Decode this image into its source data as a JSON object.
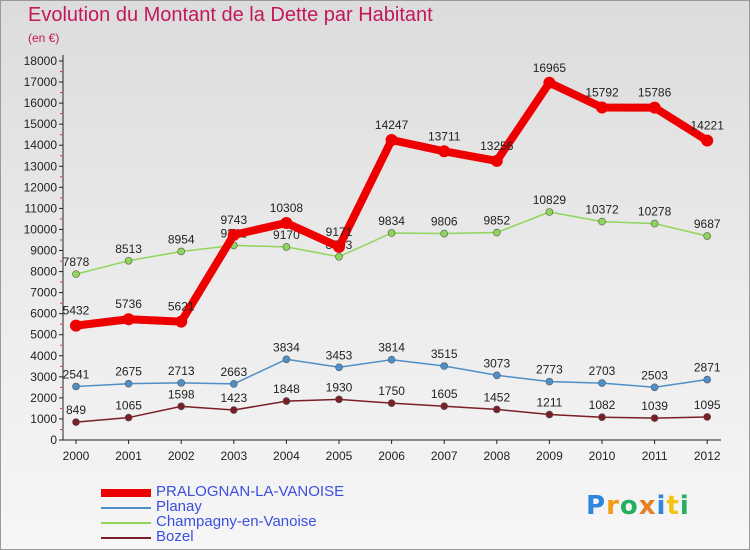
{
  "title": "Evolution du Montant de la Dette par Habitant",
  "subtitle": "(en €)",
  "logo": "Proxiti",
  "chart_data": {
    "type": "line",
    "title": "Evolution du Montant de la Dette par Habitant",
    "subtitle": "(en €)",
    "xlabel": "",
    "ylabel": "",
    "x": [
      "2000",
      "2001",
      "2002",
      "2003",
      "2004",
      "2005",
      "2006",
      "2007",
      "2008",
      "2009",
      "2010",
      "2011",
      "2012"
    ],
    "ylim": [
      0,
      18000
    ],
    "yticks": [
      0,
      1000,
      2000,
      3000,
      4000,
      5000,
      6000,
      7000,
      8000,
      9000,
      10000,
      11000,
      12000,
      13000,
      14000,
      15000,
      16000,
      17000,
      18000
    ],
    "grid": false,
    "legend_position": "bottom-left",
    "series": [
      {
        "name": "PRALOGNAN-LA-VANOISE",
        "color": "#ee0000",
        "values": [
          5432,
          5736,
          5621,
          9743,
          10308,
          9171,
          14247,
          13711,
          13256,
          16965,
          15792,
          15786,
          14221
        ]
      },
      {
        "name": "Planay",
        "color": "#4f8fc8",
        "values": [
          2541,
          2675,
          2713,
          2663,
          3834,
          3453,
          3814,
          3515,
          3073,
          2773,
          2703,
          2503,
          2871
        ]
      },
      {
        "name": "Champagny-en-Vanoise",
        "color": "#8fd65a",
        "values": [
          7878,
          8513,
          8954,
          9241,
          9170,
          8703,
          9834,
          9806,
          9852,
          10829,
          10372,
          10278,
          9687
        ]
      },
      {
        "name": "Bozel",
        "color": "#7a1f26",
        "values": [
          849,
          1065,
          1598,
          1423,
          1848,
          1930,
          1750,
          1605,
          1452,
          1211,
          1082,
          1039,
          1095
        ]
      }
    ]
  }
}
